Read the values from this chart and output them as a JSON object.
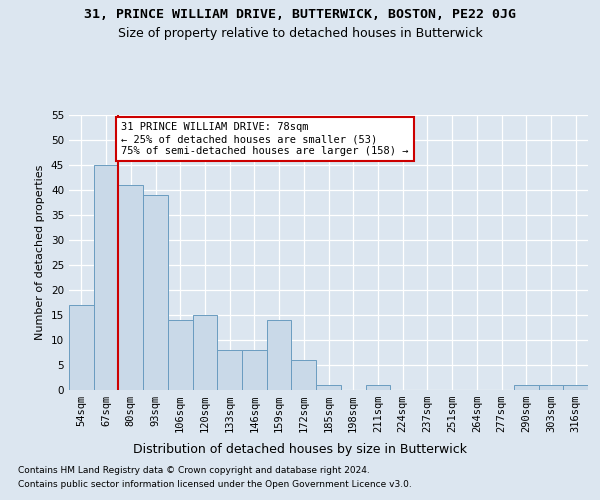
{
  "title1": "31, PRINCE WILLIAM DRIVE, BUTTERWICK, BOSTON, PE22 0JG",
  "title2": "Size of property relative to detached houses in Butterwick",
  "xlabel": "Distribution of detached houses by size in Butterwick",
  "ylabel": "Number of detached properties",
  "categories": [
    "54sqm",
    "67sqm",
    "80sqm",
    "93sqm",
    "106sqm",
    "120sqm",
    "133sqm",
    "146sqm",
    "159sqm",
    "172sqm",
    "185sqm",
    "198sqm",
    "211sqm",
    "224sqm",
    "237sqm",
    "251sqm",
    "264sqm",
    "277sqm",
    "290sqm",
    "303sqm",
    "316sqm"
  ],
  "values": [
    17,
    45,
    41,
    39,
    14,
    15,
    8,
    8,
    14,
    6,
    1,
    0,
    1,
    0,
    0,
    0,
    0,
    0,
    1,
    1,
    1
  ],
  "bar_color": "#c9d9e8",
  "bar_edge_color": "#6a9cc0",
  "vline_x": 1.5,
  "vline_color": "#cc0000",
  "annotation_text": "31 PRINCE WILLIAM DRIVE: 78sqm\n← 25% of detached houses are smaller (53)\n75% of semi-detached houses are larger (158) →",
  "annotation_box_color": "#ffffff",
  "annotation_box_edge": "#cc0000",
  "ylim": [
    0,
    55
  ],
  "yticks": [
    0,
    5,
    10,
    15,
    20,
    25,
    30,
    35,
    40,
    45,
    50,
    55
  ],
  "background_color": "#dce6f0",
  "grid_color": "#ffffff",
  "footer_line1": "Contains HM Land Registry data © Crown copyright and database right 2024.",
  "footer_line2": "Contains public sector information licensed under the Open Government Licence v3.0.",
  "title1_fontsize": 9.5,
  "title2_fontsize": 9,
  "xlabel_fontsize": 9,
  "ylabel_fontsize": 8,
  "tick_fontsize": 7.5,
  "footer_fontsize": 6.5,
  "annot_fontsize": 7.5
}
